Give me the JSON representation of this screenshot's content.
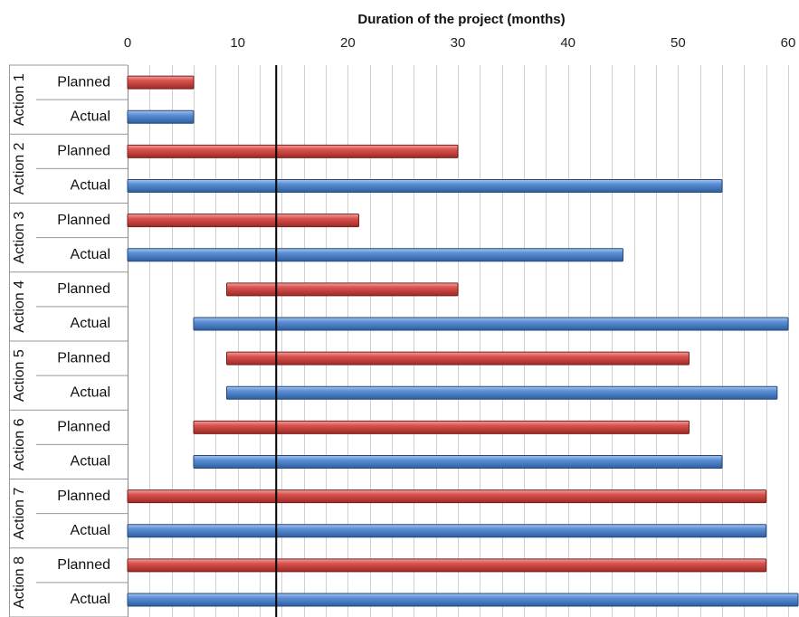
{
  "chart_data": {
    "type": "bar",
    "orientation": "horizontal",
    "title": "Duration of the project (months)",
    "xlim": [
      0,
      60
    ],
    "x_ticks": [
      "0",
      "10",
      "20",
      "30",
      "40",
      "50",
      "60"
    ],
    "minor_gridlines_every": 2,
    "grid": true,
    "reference_line": {
      "x": 13.5,
      "color": "#000000"
    },
    "colors": {
      "Planned": "#c0392b",
      "Actual": "#4a7ebb"
    },
    "groups": [
      {
        "label": "Action 1",
        "rows": [
          {
            "label": "Planned",
            "start": 0,
            "end": 6
          },
          {
            "label": "Actual",
            "start": 0,
            "end": 6
          }
        ]
      },
      {
        "label": "Action 2",
        "rows": [
          {
            "label": "Planned",
            "start": 0,
            "end": 30
          },
          {
            "label": "Actual",
            "start": 0,
            "end": 54
          }
        ]
      },
      {
        "label": "Action 3",
        "rows": [
          {
            "label": "Planned",
            "start": 0,
            "end": 21
          },
          {
            "label": "Actual",
            "start": 0,
            "end": 45
          }
        ]
      },
      {
        "label": "Action 4",
        "rows": [
          {
            "label": "Planned",
            "start": 9,
            "end": 30
          },
          {
            "label": "Actual",
            "start": 6,
            "end": 60
          }
        ]
      },
      {
        "label": "Action 5",
        "rows": [
          {
            "label": "Planned",
            "start": 9,
            "end": 51
          },
          {
            "label": "Actual",
            "start": 9,
            "end": 59
          }
        ]
      },
      {
        "label": "Action 6",
        "rows": [
          {
            "label": "Planned",
            "start": 6,
            "end": 51
          },
          {
            "label": "Actual",
            "start": 6,
            "end": 54
          }
        ]
      },
      {
        "label": "Action 7",
        "rows": [
          {
            "label": "Planned",
            "start": 0,
            "end": 58
          },
          {
            "label": "Actual",
            "start": 0,
            "end": 58
          }
        ]
      },
      {
        "label": "Action 8",
        "rows": [
          {
            "label": "Planned",
            "start": 0,
            "end": 58
          },
          {
            "label": "Actual",
            "start": 0,
            "end": 61
          }
        ]
      }
    ]
  }
}
